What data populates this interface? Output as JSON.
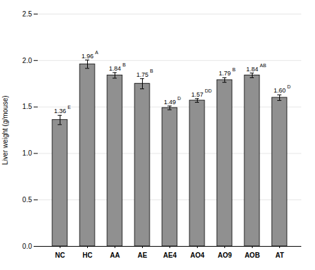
{
  "chart_data": {
    "type": "bar",
    "ylabel": "Liver weight (g/mouse)",
    "categories": [
      "NC",
      "HC",
      "AA",
      "AE",
      "AE4",
      "AO4",
      "AO9",
      "AOB",
      "AT"
    ],
    "values": [
      1.36,
      1.96,
      1.84,
      1.75,
      1.49,
      1.57,
      1.79,
      1.84,
      1.6
    ],
    "errors": [
      0.05,
      0.045,
      0.03,
      0.055,
      0.02,
      0.02,
      0.025,
      0.025,
      0.03
    ],
    "value_labels": [
      "1.36",
      "1.96",
      "1.84",
      "1.75",
      "1.49",
      "1.57",
      "1.79",
      "1.84",
      "1.60"
    ],
    "value_superscripts": [
      "E",
      "A",
      "B",
      "B",
      "D",
      "DD",
      "B",
      "AB",
      "D"
    ],
    "data_labels": true,
    "color": "#909090",
    "ylim": [
      0.0,
      2.5
    ],
    "yticks": [
      {
        "value": 0.0,
        "label": "0.0"
      },
      0.5,
      {
        "value": 1.0,
        "label": "1.0"
      },
      1.5,
      {
        "value": 2.0,
        "label": "2.0"
      },
      2.5
    ],
    "grid": true
  }
}
